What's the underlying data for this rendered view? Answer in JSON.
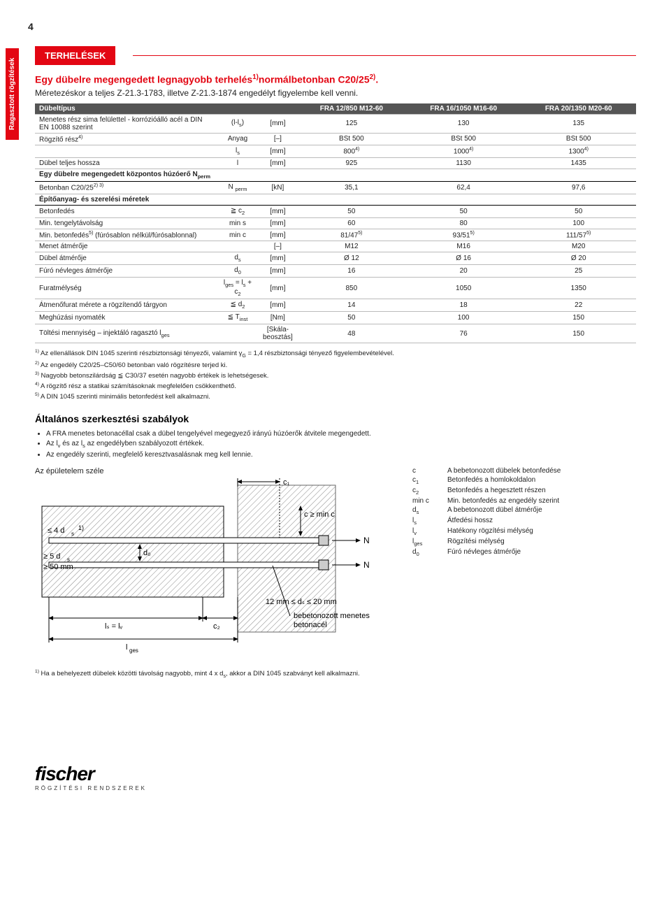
{
  "page_number": "4",
  "sidetab": "Ragasztott rögzítések",
  "redbar": "TERHELÉSEK",
  "title_line1": "Egy dübelre megengedett legnagyobb terhelés<sup>1)</sup>normálbetonban C20/25<sup>2)</sup>.",
  "title_line2": "Méretezéskor a teljes Z-21.3-1783, illetve Z-21.3-1874 engedélyt figyelembe kell venni.",
  "table": {
    "header_row": [
      "Dübeltípus",
      "",
      "",
      "FRA 12/850 M12-60",
      "FRA 16/1050 M16-60",
      "FRA 20/1350 M20-60"
    ],
    "rows": [
      {
        "c": [
          "Menetes rész sima felülettel - korrózióálló acél a DIN EN 10088 szerint",
          "(l-l<sub>s</sub>)",
          "[mm]",
          "125",
          "130",
          "135"
        ],
        "span": 1
      },
      {
        "c": [
          "Rögzítő rész<sup>4)</sup>",
          "Anyag",
          "[–]",
          "BSt 500",
          "BSt 500",
          "BSt 500"
        ],
        "rowspan": 1
      },
      {
        "c": [
          "",
          "l<sub>s</sub>",
          "[mm]",
          "800<sup>4)</sup>",
          "1000<sup>4)</sup>",
          "1300<sup>4)</sup>"
        ]
      },
      {
        "c": [
          "Dübel teljes hossza",
          "l",
          "[mm]",
          "925",
          "1130",
          "1435"
        ]
      },
      {
        "section": "Egy dübelre megengedett központos húzóerő N<sub>perm</sub>"
      },
      {
        "c": [
          "Betonban C20/25<sup>2) 3)</sup>",
          "N <sub>perm</sub>",
          "[kN]",
          "35,1",
          "62,4",
          "97,6"
        ]
      },
      {
        "section": "Építőanyag- és szerelési méretek"
      },
      {
        "c": [
          "Betonfedés",
          "≧ c<sub>2</sub>",
          "[mm]",
          "50",
          "50",
          "50"
        ]
      },
      {
        "c": [
          "Min. tengelytávolság",
          "min s",
          "[mm]",
          "60",
          "80",
          "100"
        ]
      },
      {
        "c": [
          "Min. betonfedés<sup>5)</sup> (fúrósablon nélkül/fúrósablonnal)",
          "min c",
          "[mm]",
          "81/47<sup>5)</sup>",
          "93/51<sup>5)</sup>",
          "111/57<sup>5)</sup>"
        ]
      },
      {
        "c": [
          "Menet átmérője",
          "",
          "[–]",
          "M12",
          "M16",
          "M20"
        ]
      },
      {
        "c": [
          "Dübel átmérője",
          "d<sub>s</sub>",
          "[mm]",
          "Ø 12",
          "Ø 16",
          "Ø 20"
        ]
      },
      {
        "c": [
          "Fúró névleges átmérője",
          "d<sub>0</sub>",
          "[mm]",
          "16",
          "20",
          "25"
        ]
      },
      {
        "c": [
          "Furatmélység",
          "l<sub>ges</sub> = l<sub>s</sub> + c<sub>2</sub>",
          "[mm]",
          "850",
          "1050",
          "1350"
        ]
      },
      {
        "c": [
          "Átmenőfurat mérete a rögzítendő tárgyon",
          "≦ d<sub>2</sub>",
          "[mm]",
          "14",
          "18",
          "22"
        ]
      },
      {
        "c": [
          "Meghúzási nyomaték",
          "≦ T<sub>inst</sub>",
          "[Nm]",
          "50",
          "100",
          "150"
        ]
      },
      {
        "c": [
          "Töltési mennyiség – injektáló ragasztó l<sub>ges</sub>",
          "",
          "[Skála-beosztás]",
          "48",
          "76",
          "150"
        ]
      }
    ]
  },
  "notes": [
    "<sup>1)</sup> Az ellenállások DIN 1045 szerinti részbiztonsági tényezői, valamint γ<sub>G</sub> = 1,4 részbiztonsági tényező figyelembevételével.",
    "<sup>2)</sup> Az engedély C20/25–C50/60 betonban való rögzítésre terjed ki.",
    "<sup>3)</sup> Nagyobb betonszilárdság ≦ C30/37 esetén nagyobb értékek is lehetségesek.",
    "<sup>4)</sup> A rögzítő rész a statikai számításoknak megfelelően csökkenthető.",
    "<sup>5)</sup> A DIN 1045 szerinti minimális betonfedést kell alkalmazni."
  ],
  "section2_title": "Általános szerkesztési szabályok",
  "bullets": [
    "A FRA menetes betonacéllal csak a dübel tengelyével megegyező irányú húzóerők átvitele megengedett.",
    "Az l<sub>v</sub> és az l<sub>s</sub> az engedélyben szabályozott értékek.",
    "Az engedély szerinti, megfelelő keresztvasalásnak meg kell lennie."
  ],
  "fig_caption": "Az épületelem széle",
  "fig_labels": {
    "c1": "c₁",
    "c": "c ≧ min c",
    "N": "N",
    "s4d": "≦ 4 d<sub>s</sub>",
    "s5d": "≧ 5 d<sub>s</sub>",
    "s50": "≧ 50 mm",
    "d0": "d<sub>0</sub>",
    "lslv": "l<sub>s</sub> = l<sub>v</sub>",
    "lges": "l<sub>ges</sub>",
    "c2": "c<sub>2</sub>",
    "range": "12 mm ≦ d<sub>s</sub> ≦ 20 mm",
    "anchor": "bebetonozott menetes betonacél",
    "sup1": "1)"
  },
  "legend": [
    {
      "sym": "c",
      "txt": "A bebetonozott dübelek betonfedése"
    },
    {
      "sym": "c<sub>1</sub>",
      "txt": "Betonfedés a homlokoldalon"
    },
    {
      "sym": "c<sub>2</sub>",
      "txt": "Betonfedés a hegesztett részen"
    },
    {
      "sym": "min c",
      "txt": "Min. betonfedés az engedély szerint"
    },
    {
      "sym": "d<sub>s</sub>",
      "txt": "A bebetonozott dübel átmérője"
    },
    {
      "sym": "l<sub>s</sub>",
      "txt": "Átfedési hossz"
    },
    {
      "sym": "l<sub>v</sub>",
      "txt": "Hatékony rögzítési mélység"
    },
    {
      "sym": "l<sub>ges</sub>",
      "txt": "Rögzítési mélység"
    },
    {
      "sym": "d<sub>0</sub>",
      "txt": "Fúró névleges átmérője"
    }
  ],
  "footnote2": "<sup>1)</sup> Ha a behelyezett dübelek közötti távolság nagyobb, mint 4 x d<sub>s</sub>, akkor a DIN 1045 szabványt kell alkalmazni.",
  "footer_brand": "fischer",
  "footer_sub": "RÖGZÍTÉSI RENDSZEREK"
}
